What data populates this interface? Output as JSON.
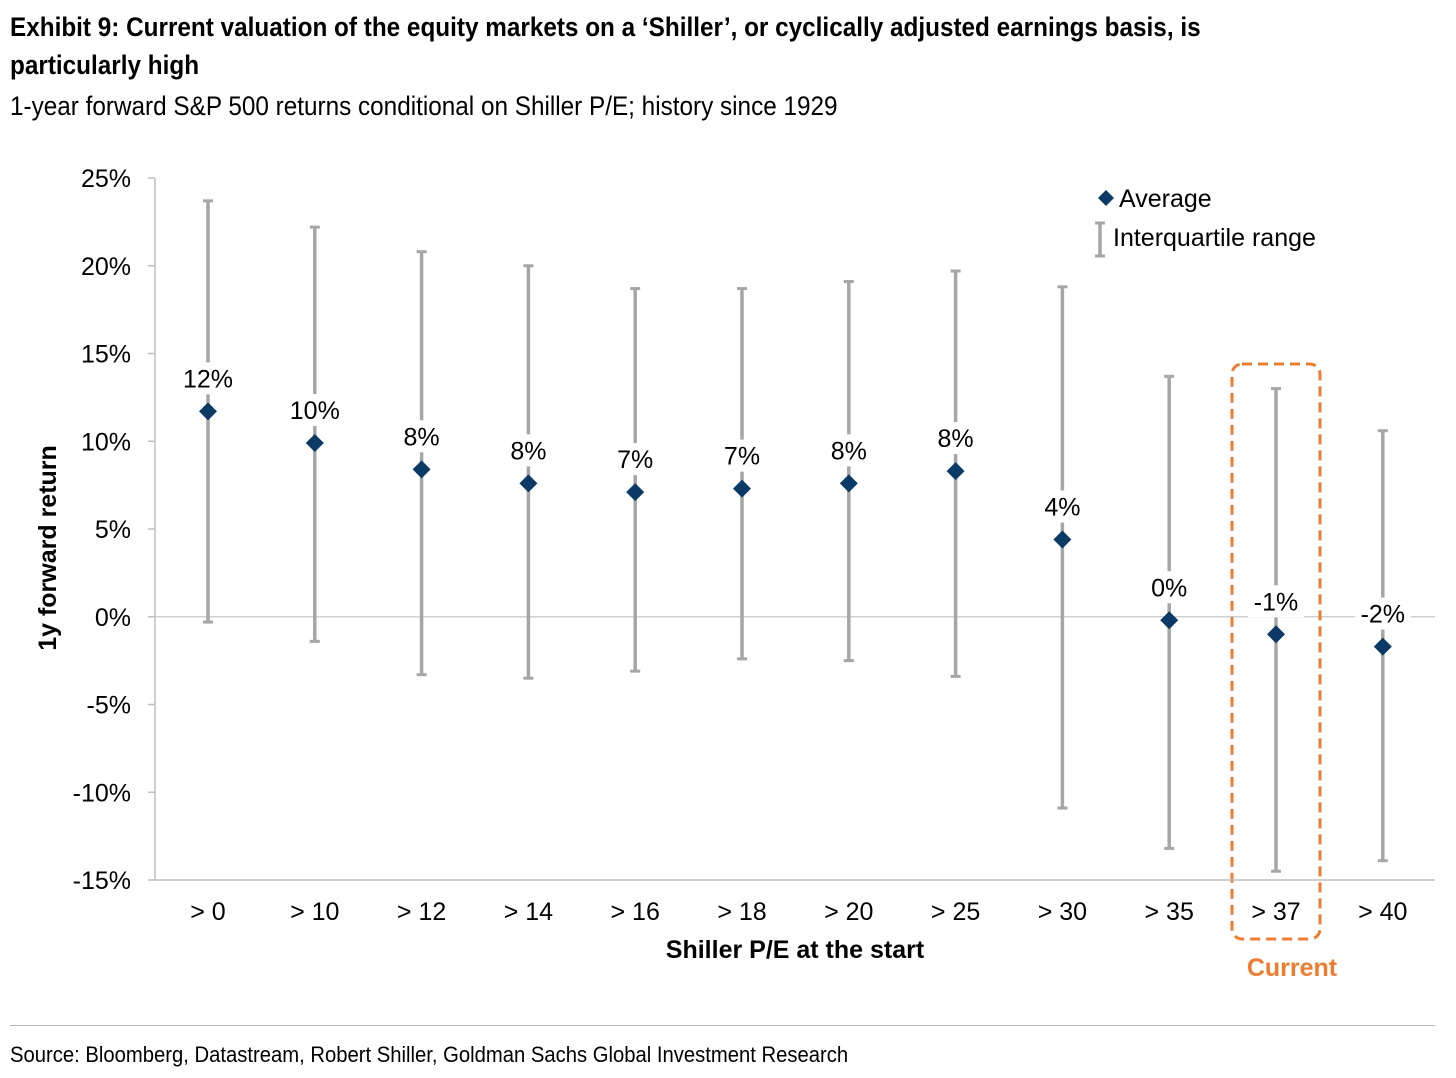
{
  "header": {
    "title": "Exhibit 9: Current valuation of the equity markets on a ‘Shiller’, or cyclically adjusted earnings basis, is particularly high",
    "subtitle": "1-year forward S&P 500 returns conditional on Shiller P/E; history since 1929"
  },
  "footer": {
    "source": "Source: Bloomberg, Datastream, Robert Shiller, Goldman Sachs Global Investment Research"
  },
  "chart_data": {
    "type": "scatter",
    "categories": [
      "> 0",
      "> 10",
      "> 12",
      "> 14",
      "> 16",
      "> 18",
      "> 20",
      "> 25",
      "> 30",
      "> 35",
      "> 37",
      "> 40"
    ],
    "series": [
      {
        "name": "Average",
        "values": [
          11.7,
          9.9,
          8.4,
          7.6,
          7.1,
          7.3,
          7.6,
          8.3,
          4.4,
          -0.2,
          -1.0,
          -1.7
        ],
        "labels": [
          "12%",
          "10%",
          "8%",
          "8%",
          "7%",
          "7%",
          "8%",
          "8%",
          "4%",
          "0%",
          "-1%",
          "-2%"
        ],
        "color": "#0b3a66"
      },
      {
        "name": "Interquartile range",
        "low": [
          -0.3,
          -1.4,
          -3.3,
          -3.5,
          -3.1,
          -2.4,
          -2.5,
          -3.4,
          -10.9,
          -13.2,
          -14.5,
          -13.9
        ],
        "high": [
          23.7,
          22.2,
          20.8,
          20.0,
          18.7,
          18.7,
          19.1,
          19.7,
          18.8,
          13.7,
          13.0,
          10.6
        ],
        "color": "#a6a6a6"
      }
    ],
    "xlabel": "Shiller P/E at the start",
    "ylabel": "1y forward return",
    "ylim": [
      -15,
      25
    ],
    "yticks": [
      25,
      20,
      15,
      10,
      5,
      0,
      -5,
      -10,
      -15
    ],
    "ytick_labels": [
      "25%",
      "20%",
      "15%",
      "10%",
      "5%",
      "0%",
      "-5%",
      "-10%",
      "-15%"
    ],
    "legend": {
      "placement": "top-right",
      "items": [
        "Average",
        "Interquartile range"
      ]
    },
    "highlight": {
      "category": "> 37",
      "label": "Current",
      "color": "#ed7d31"
    },
    "grid": false
  }
}
